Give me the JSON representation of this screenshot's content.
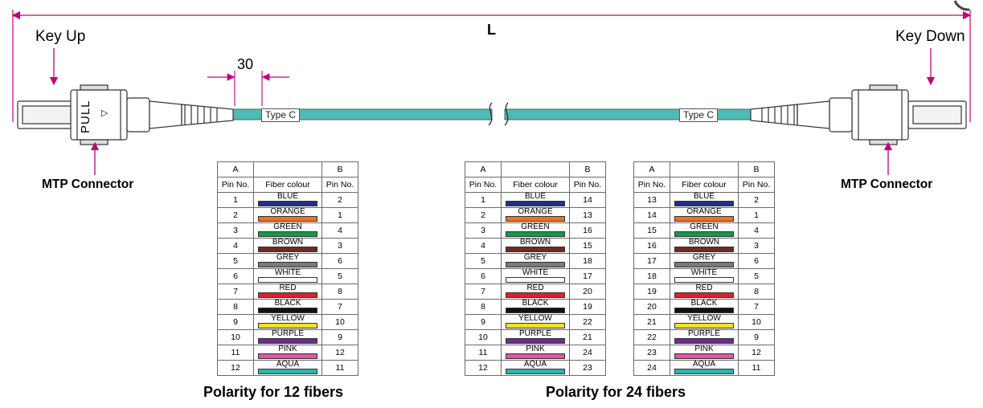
{
  "labels": {
    "length": "L",
    "key_up": "Key Up",
    "key_down": "Key Down",
    "dim_30": "30",
    "type_c": "Type C",
    "pull": "PULL",
    "mtp_connector": "MTP Connector"
  },
  "colors": {
    "cable": "#4FBBB4",
    "arrow": "#C4007A",
    "line": "#333333"
  },
  "table_headers": {
    "a": "A",
    "b": "B",
    "pin_no": "Pin No.",
    "fiber_colour": "Fiber colour"
  },
  "fibers": [
    {
      "name": "BLUE",
      "color": "#1F2F8C"
    },
    {
      "name": "ORANGE",
      "color": "#F07020"
    },
    {
      "name": "GREEN",
      "color": "#109A4A"
    },
    {
      "name": "BROWN",
      "color": "#6E2A26"
    },
    {
      "name": "GREY",
      "color": "#7A7A7A"
    },
    {
      "name": "WHITE",
      "color": "#FFFFFF"
    },
    {
      "name": "RED",
      "color": "#E0202A"
    },
    {
      "name": "BLACK",
      "color": "#111111"
    },
    {
      "name": "YELLOW",
      "color": "#F2E21C"
    },
    {
      "name": "PURPLE",
      "color": "#6B2C8E"
    },
    {
      "name": "PINK",
      "color": "#D95BA8"
    },
    {
      "name": "AQUA",
      "color": "#2BB5AC"
    }
  ],
  "tables": [
    {
      "a": [
        1,
        2,
        3,
        4,
        5,
        6,
        7,
        8,
        9,
        10,
        11,
        12
      ],
      "b": [
        2,
        1,
        4,
        3,
        6,
        5,
        8,
        7,
        10,
        9,
        12,
        11
      ]
    },
    {
      "a": [
        1,
        2,
        3,
        4,
        5,
        6,
        7,
        8,
        9,
        10,
        11,
        12
      ],
      "b": [
        14,
        13,
        16,
        15,
        18,
        17,
        20,
        19,
        22,
        21,
        24,
        23
      ]
    },
    {
      "a": [
        13,
        14,
        15,
        16,
        17,
        18,
        19,
        20,
        21,
        22,
        23,
        24
      ],
      "b": [
        2,
        1,
        4,
        3,
        6,
        5,
        8,
        7,
        10,
        9,
        12,
        11
      ]
    }
  ],
  "captions": {
    "polarity_12": "Polarity for 12 fibers",
    "polarity_24": "Polarity for 24 fibers"
  }
}
